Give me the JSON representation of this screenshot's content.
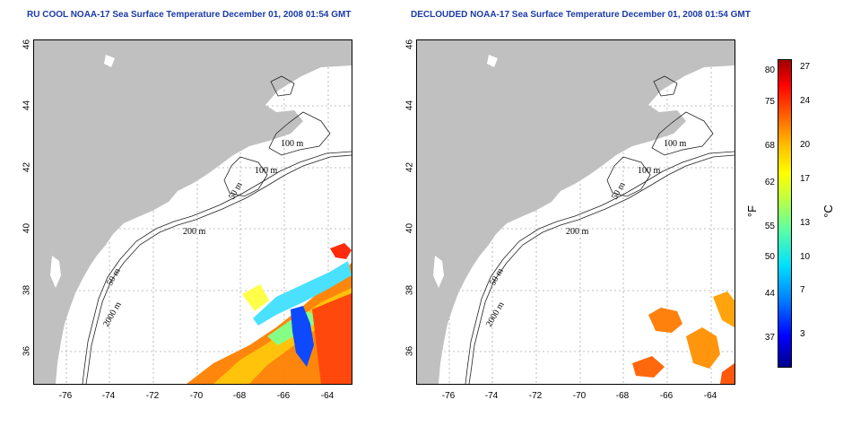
{
  "titles": {
    "left": "RU COOL NOAA-17 Sea Surface Temperature December 01, 2008 01:54 GMT",
    "right": "DECLOUDED NOAA-17 Sea Surface Temperature December 01, 2008 01:54 GMT"
  },
  "axes": {
    "x_ticks": [
      "-76",
      "-74",
      "-72",
      "-70",
      "-68",
      "-66",
      "-64"
    ],
    "y_ticks": [
      "36",
      "38",
      "40",
      "42",
      "44",
      "46"
    ]
  },
  "contour_labels": [
    "100 m",
    "100 m",
    "50 m",
    "200 m",
    "50 m",
    "2000 m"
  ],
  "colorbar": {
    "fahrenheit_ticks": [
      "80",
      "75",
      "68",
      "62",
      "55",
      "50",
      "44",
      "37"
    ],
    "celsius_ticks": [
      "27",
      "24",
      "20",
      "17",
      "13",
      "10",
      "7",
      "3"
    ],
    "unit_f": "°F",
    "unit_c": "°C"
  },
  "colors": {
    "land": "#c0c0c0",
    "title": "#1a3aa8",
    "grid": "#aaaaaa"
  }
}
